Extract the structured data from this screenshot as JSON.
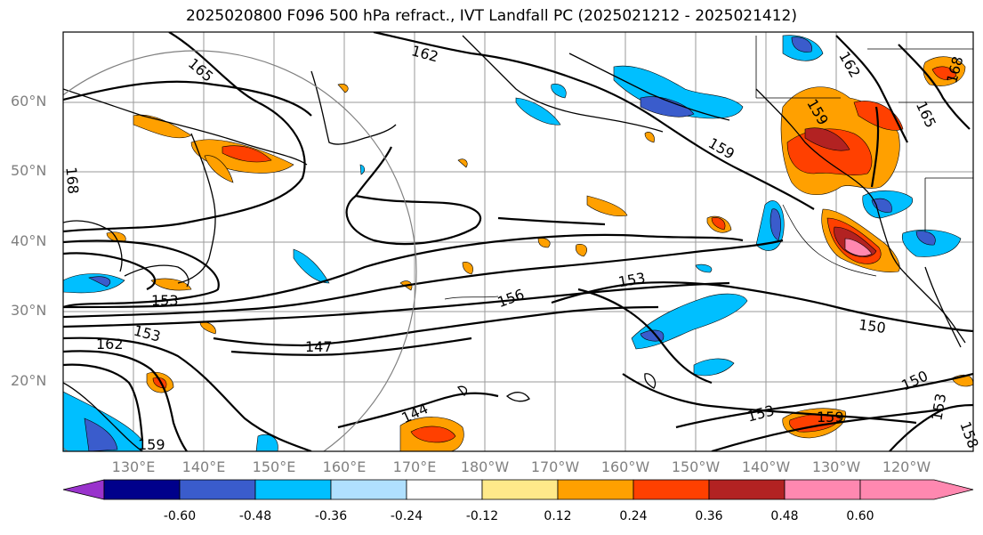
{
  "title": "2025020800 F096 500 hPa refract., IVT Landfall PC (2025021212 - 2025021412)",
  "lat_labels": [
    "60°N",
    "50°N",
    "40°N",
    "30°N",
    "20°N"
  ],
  "lon_labels": [
    "130°E",
    "140°E",
    "150°E",
    "160°E",
    "170°E",
    "180°W",
    "170°W",
    "160°W",
    "150°W",
    "140°W",
    "130°W",
    "120°W"
  ],
  "contour_labels": [
    "165",
    "162",
    "162",
    "165",
    "168",
    "168",
    "159",
    "159",
    "156",
    "153",
    "153",
    "153",
    "150",
    "150",
    "153",
    "147",
    "162",
    "144",
    "159",
    "153",
    "159",
    "158"
  ],
  "colorbar": {
    "labels": [
      "-0.60",
      "-0.48",
      "-0.36",
      "-0.24",
      "-0.12",
      "0.12",
      "0.24",
      "0.36",
      "0.48",
      "0.60"
    ],
    "colors": [
      "#9933cc",
      "#00008b",
      "#3a5ccc",
      "#00bfff",
      "#b0e0ff",
      "#ffffff",
      "#ffe98a",
      "#ffa000",
      "#ff4000",
      "#b22222",
      "#ff88b0"
    ]
  }
}
